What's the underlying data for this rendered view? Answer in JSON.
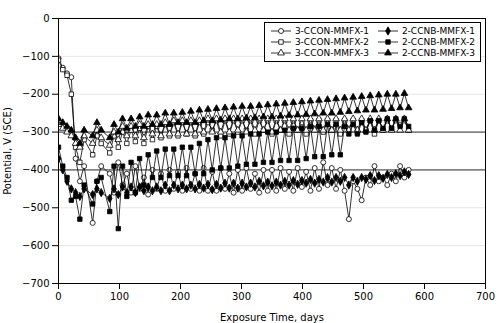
{
  "chart_data": {
    "type": "line",
    "xlabel": "Exposure Time, days",
    "ylabel": "Potential, V (SCE)",
    "xlim": [
      0,
      700
    ],
    "ylim": [
      -700,
      0
    ],
    "xticks": [
      0,
      100,
      200,
      300,
      400,
      500,
      600,
      700
    ],
    "yticks": [
      0,
      -100,
      -200,
      -300,
      -400,
      -500,
      -600,
      -700
    ],
    "grid": true,
    "legend": "upper right",
    "hlines": [
      -300,
      -400
    ],
    "x": [
      0,
      7,
      14,
      21,
      28,
      35,
      42,
      56,
      63,
      70,
      84,
      91,
      98,
      105,
      112,
      119,
      126,
      133,
      140,
      147,
      154,
      161,
      168,
      175,
      182,
      189,
      196,
      203,
      210,
      217,
      224,
      231,
      238,
      245,
      252,
      259,
      266,
      273,
      280,
      287,
      294,
      301,
      308,
      315,
      322,
      329,
      336,
      343,
      350,
      357,
      364,
      371,
      378,
      385,
      392,
      399,
      406,
      413,
      420,
      427,
      434,
      441,
      448,
      455,
      462,
      469,
      476,
      483,
      490,
      497,
      504,
      511,
      518,
      525,
      532,
      539,
      546,
      553,
      560,
      567,
      574
    ],
    "series": [
      {
        "name": "3-CCON-MMFX-1",
        "color": "#000000",
        "marker": "circle-open",
        "values": [
          -105,
          -130,
          -145,
          -155,
          -370,
          -430,
          -390,
          -540,
          -430,
          -390,
          -410,
          -460,
          -380,
          -440,
          -410,
          -460,
          -390,
          -450,
          -420,
          -465,
          -400,
          -450,
          -410,
          -455,
          -400,
          -450,
          -405,
          -455,
          -395,
          -450,
          -410,
          -455,
          -395,
          -455,
          -405,
          -455,
          -395,
          -450,
          -410,
          -460,
          -400,
          -455,
          -395,
          -450,
          -410,
          -460,
          -400,
          -455,
          -400,
          -455,
          -395,
          -450,
          -405,
          -455,
          -395,
          -445,
          -405,
          -455,
          -395,
          -450,
          -380,
          -440,
          -395,
          -450,
          -400,
          -455,
          -530,
          -430,
          -450,
          -480,
          -420,
          -440,
          -390,
          -430,
          -420,
          -440,
          -410,
          -430,
          -390,
          -420,
          -400
        ]
      },
      {
        "name": "3-CCON-MMFX-2",
        "color": "#000000",
        "marker": "square-open",
        "values": [
          -110,
          -135,
          -150,
          -200,
          -340,
          -380,
          -320,
          -360,
          -310,
          -330,
          -355,
          -310,
          -340,
          -300,
          -330,
          -295,
          -325,
          -290,
          -330,
          -285,
          -320,
          -285,
          -315,
          -280,
          -310,
          -275,
          -310,
          -275,
          -305,
          -275,
          -310,
          -275,
          -305,
          -275,
          -295,
          -270,
          -310,
          -270,
          -305,
          -270,
          -300,
          -270,
          -295,
          -270,
          -305,
          -270,
          -295,
          -270,
          -305,
          -270,
          -295,
          -270,
          -305,
          -270,
          -295,
          -275,
          -305,
          -270,
          -290,
          -270,
          -300,
          -270,
          -295,
          -270,
          -305,
          -270,
          -290,
          -270,
          -300,
          -270,
          -295,
          -270,
          -305,
          -270,
          -295,
          -270,
          -290,
          -270,
          -280,
          -270,
          -295
        ]
      },
      {
        "name": "3-CCON-MMFX-3",
        "color": "#000000",
        "marker": "triangle-open",
        "values": [
          -280,
          -290,
          -300,
          -310,
          -330,
          -340,
          -310,
          -330,
          -295,
          -315,
          -335,
          -300,
          -320,
          -285,
          -310,
          -285,
          -310,
          -280,
          -315,
          -280,
          -305,
          -280,
          -310,
          -275,
          -305,
          -270,
          -305,
          -270,
          -305,
          -270,
          -305,
          -270,
          -300,
          -265,
          -300,
          -265,
          -300,
          -265,
          -300,
          -265,
          -295,
          -265,
          -300,
          -265,
          -295,
          -265,
          -295,
          -265,
          -300,
          -265,
          -295,
          -265,
          -295,
          -265,
          -295,
          -265,
          -295,
          -265,
          -295,
          -265,
          -295,
          -265,
          -295,
          -265,
          -295,
          -265,
          -295,
          -265,
          -295,
          -265,
          -295,
          -265,
          -295,
          -265,
          -295,
          -265,
          -295,
          -265,
          -295,
          -265,
          -295
        ]
      },
      {
        "name": "2-CCNB-MMFX-1",
        "color": "#000000",
        "marker": "diamond",
        "values": [
          -370,
          -400,
          -430,
          -450,
          -460,
          -470,
          -450,
          -465,
          -450,
          -460,
          -475,
          -450,
          -465,
          -445,
          -460,
          -445,
          -460,
          -445,
          -455,
          -445,
          -455,
          -445,
          -455,
          -440,
          -455,
          -440,
          -450,
          -440,
          -450,
          -440,
          -450,
          -438,
          -448,
          -438,
          -452,
          -438,
          -448,
          -435,
          -448,
          -435,
          -448,
          -435,
          -445,
          -435,
          -445,
          -430,
          -442,
          -432,
          -442,
          -432,
          -440,
          -430,
          -440,
          -428,
          -438,
          -428,
          -435,
          -425,
          -435,
          -425,
          -432,
          -420,
          -432,
          -420,
          -430,
          -420,
          -440,
          -420,
          -430,
          -420,
          -425,
          -415,
          -428,
          -415,
          -422,
          -412,
          -420,
          -410,
          -415,
          -405,
          -412
        ]
      },
      {
        "name": "2-CCNB-MMFX-2",
        "color": "#000000",
        "marker": "square",
        "values": [
          -340,
          -390,
          -420,
          -480,
          -470,
          -530,
          -440,
          -490,
          -430,
          -420,
          -510,
          -390,
          -555,
          -390,
          -470,
          -380,
          -460,
          -370,
          -440,
          -360,
          -420,
          -350,
          -420,
          -345,
          -415,
          -345,
          -415,
          -340,
          -415,
          -340,
          -410,
          -330,
          -410,
          -320,
          -400,
          -315,
          -395,
          -315,
          -395,
          -310,
          -390,
          -310,
          -385,
          -305,
          -385,
          -305,
          -380,
          -300,
          -380,
          -300,
          -375,
          -295,
          -375,
          -290,
          -375,
          -290,
          -370,
          -285,
          -365,
          -285,
          -365,
          -280,
          -360,
          -280,
          -360,
          -285,
          -305,
          -280,
          -305,
          -275,
          -300,
          -270,
          -295,
          -270,
          -290,
          -265,
          -290,
          -265,
          -285,
          -265,
          -285
        ]
      },
      {
        "name": "2-CCNB-MMFX-3",
        "color": "#000000",
        "marker": "triangle",
        "values": [
          -265,
          -275,
          -285,
          -295,
          -315,
          -330,
          -295,
          -310,
          -275,
          -295,
          -315,
          -280,
          -300,
          -265,
          -290,
          -265,
          -285,
          -260,
          -285,
          -255,
          -280,
          -255,
          -280,
          -250,
          -280,
          -250,
          -275,
          -248,
          -275,
          -245,
          -275,
          -242,
          -270,
          -240,
          -270,
          -238,
          -268,
          -236,
          -265,
          -234,
          -265,
          -232,
          -263,
          -232,
          -262,
          -230,
          -260,
          -228,
          -260,
          -226,
          -258,
          -224,
          -256,
          -222,
          -255,
          -220,
          -254,
          -218,
          -252,
          -216,
          -250,
          -214,
          -250,
          -212,
          -248,
          -210,
          -246,
          -208,
          -244,
          -206,
          -242,
          -204,
          -242,
          -202,
          -240,
          -200,
          -238,
          -200,
          -236,
          -198,
          -236
        ]
      }
    ]
  }
}
